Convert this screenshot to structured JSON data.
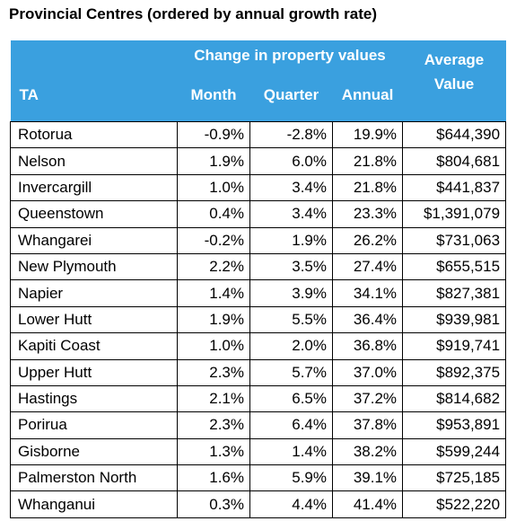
{
  "title": "Provincial Centres (ordered by annual growth rate)",
  "header": {
    "group_label": "Change in property values",
    "ta": "TA",
    "month": "Month",
    "quarter": "Quarter",
    "annual": "Annual",
    "average_line1": "Average",
    "average_line2": "Value"
  },
  "colors": {
    "header_bg": "#3aa0df",
    "header_text": "#ffffff"
  },
  "rows": [
    {
      "ta": "Rotorua",
      "month": "-0.9%",
      "quarter": "-2.8%",
      "annual": "19.9%",
      "value": "$644,390"
    },
    {
      "ta": "Nelson",
      "month": "1.9%",
      "quarter": "6.0%",
      "annual": "21.8%",
      "value": "$804,681"
    },
    {
      "ta": "Invercargill",
      "month": "1.0%",
      "quarter": "3.4%",
      "annual": "21.8%",
      "value": "$441,837"
    },
    {
      "ta": "Queenstown",
      "month": "0.4%",
      "quarter": "3.4%",
      "annual": "23.3%",
      "value": "$1,391,079"
    },
    {
      "ta": "Whangarei",
      "month": "-0.2%",
      "quarter": "1.9%",
      "annual": "26.2%",
      "value": "$731,063"
    },
    {
      "ta": "New Plymouth",
      "month": "2.2%",
      "quarter": "3.5%",
      "annual": "27.4%",
      "value": "$655,515"
    },
    {
      "ta": "Napier",
      "month": "1.4%",
      "quarter": "3.9%",
      "annual": "34.1%",
      "value": "$827,381"
    },
    {
      "ta": "Lower Hutt",
      "month": "1.9%",
      "quarter": "5.5%",
      "annual": "36.4%",
      "value": "$939,981"
    },
    {
      "ta": "Kapiti Coast",
      "month": "1.0%",
      "quarter": "2.0%",
      "annual": "36.8%",
      "value": "$919,741"
    },
    {
      "ta": "Upper Hutt",
      "month": "2.3%",
      "quarter": "5.7%",
      "annual": "37.0%",
      "value": "$892,375"
    },
    {
      "ta": "Hastings",
      "month": "2.1%",
      "quarter": "6.5%",
      "annual": "37.2%",
      "value": "$814,682"
    },
    {
      "ta": "Porirua",
      "month": "2.3%",
      "quarter": "6.4%",
      "annual": "37.8%",
      "value": "$953,891"
    },
    {
      "ta": "Gisborne",
      "month": "1.3%",
      "quarter": "1.4%",
      "annual": "38.2%",
      "value": "$599,244"
    },
    {
      "ta": "Palmerston North",
      "month": "1.6%",
      "quarter": "5.9%",
      "annual": "39.1%",
      "value": "$725,185"
    },
    {
      "ta": "Whanganui",
      "month": "0.3%",
      "quarter": "4.4%",
      "annual": "41.4%",
      "value": "$522,220"
    }
  ]
}
